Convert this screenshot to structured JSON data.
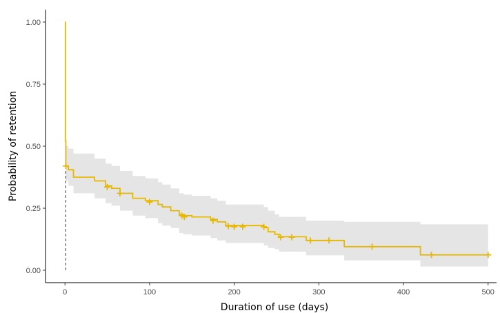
{
  "chart_data": {
    "type": "line",
    "title": "",
    "xlabel": "Duration of use (days)",
    "ylabel": "Probability of retention",
    "xlim": [
      -23,
      510
    ],
    "ylim": [
      -0.05,
      1.05
    ],
    "x_ticks": [
      0,
      100,
      200,
      300,
      400,
      500
    ],
    "y_ticks": [
      0,
      0.25,
      0.5,
      0.75,
      1
    ],
    "x_tick_labels": [
      "0",
      "100",
      "200",
      "300",
      "400",
      "500"
    ],
    "y_tick_labels": [
      "0.00",
      "0.25",
      "0.50",
      "0.75",
      "1.00"
    ],
    "grid": false,
    "legend": "none",
    "colors": {
      "line": "#E7B800",
      "ci_band": "#e5e5e5",
      "median_line": "#333333"
    },
    "median_survival_line": {
      "x": 1,
      "y_from": 0,
      "y_to": 0.5,
      "style": "dashed"
    },
    "series": [
      {
        "steps": [
          [
            0,
            1.0
          ],
          [
            0.5,
            0.52
          ],
          [
            1,
            0.42
          ],
          [
            4,
            0.405
          ],
          [
            10,
            0.375
          ],
          [
            35,
            0.36
          ],
          [
            48,
            0.34
          ],
          [
            55,
            0.33
          ],
          [
            65,
            0.31
          ],
          [
            80,
            0.29
          ],
          [
            95,
            0.28
          ],
          [
            110,
            0.265
          ],
          [
            115,
            0.255
          ],
          [
            125,
            0.24
          ],
          [
            135,
            0.225
          ],
          [
            140,
            0.22
          ],
          [
            150,
            0.215
          ],
          [
            172,
            0.205
          ],
          [
            180,
            0.195
          ],
          [
            190,
            0.18
          ],
          [
            235,
            0.172
          ],
          [
            240,
            0.155
          ],
          [
            248,
            0.145
          ],
          [
            253,
            0.135
          ],
          [
            285,
            0.12
          ],
          [
            330,
            0.095
          ],
          [
            420,
            0.062
          ],
          [
            500,
            0.062
          ]
        ],
        "ci_lower": [
          [
            0,
            1.0
          ],
          [
            0.5,
            0.45
          ],
          [
            1,
            0.36
          ],
          [
            4,
            0.34
          ],
          [
            10,
            0.31
          ],
          [
            35,
            0.29
          ],
          [
            48,
            0.27
          ],
          [
            55,
            0.26
          ],
          [
            65,
            0.24
          ],
          [
            80,
            0.22
          ],
          [
            95,
            0.21
          ],
          [
            110,
            0.19
          ],
          [
            115,
            0.18
          ],
          [
            125,
            0.17
          ],
          [
            135,
            0.15
          ],
          [
            140,
            0.145
          ],
          [
            150,
            0.14
          ],
          [
            172,
            0.13
          ],
          [
            180,
            0.12
          ],
          [
            190,
            0.11
          ],
          [
            235,
            0.1
          ],
          [
            240,
            0.09
          ],
          [
            248,
            0.085
          ],
          [
            253,
            0.075
          ],
          [
            285,
            0.06
          ],
          [
            330,
            0.04
          ],
          [
            420,
            0.015
          ],
          [
            500,
            0.015
          ]
        ],
        "ci_upper": [
          [
            0,
            1.0
          ],
          [
            0.5,
            0.6
          ],
          [
            1,
            0.5
          ],
          [
            4,
            0.49
          ],
          [
            10,
            0.47
          ],
          [
            35,
            0.45
          ],
          [
            48,
            0.43
          ],
          [
            55,
            0.42
          ],
          [
            65,
            0.4
          ],
          [
            80,
            0.38
          ],
          [
            95,
            0.37
          ],
          [
            110,
            0.355
          ],
          [
            115,
            0.345
          ],
          [
            125,
            0.33
          ],
          [
            135,
            0.31
          ],
          [
            140,
            0.305
          ],
          [
            150,
            0.3
          ],
          [
            172,
            0.29
          ],
          [
            180,
            0.28
          ],
          [
            190,
            0.265
          ],
          [
            235,
            0.255
          ],
          [
            240,
            0.24
          ],
          [
            248,
            0.225
          ],
          [
            253,
            0.215
          ],
          [
            285,
            0.2
          ],
          [
            330,
            0.195
          ],
          [
            420,
            0.185
          ],
          [
            500,
            0.185
          ]
        ],
        "censored": [
          [
            1,
            0.42
          ],
          [
            50,
            0.335
          ],
          [
            65,
            0.31
          ],
          [
            100,
            0.275
          ],
          [
            138,
            0.22
          ],
          [
            141,
            0.215
          ],
          [
            175,
            0.2
          ],
          [
            193,
            0.178
          ],
          [
            200,
            0.175
          ],
          [
            210,
            0.175
          ],
          [
            235,
            0.175
          ],
          [
            255,
            0.133
          ],
          [
            268,
            0.133
          ],
          [
            290,
            0.12
          ],
          [
            312,
            0.12
          ],
          [
            363,
            0.095
          ],
          [
            433,
            0.062
          ],
          [
            500,
            0.062
          ]
        ]
      }
    ]
  }
}
